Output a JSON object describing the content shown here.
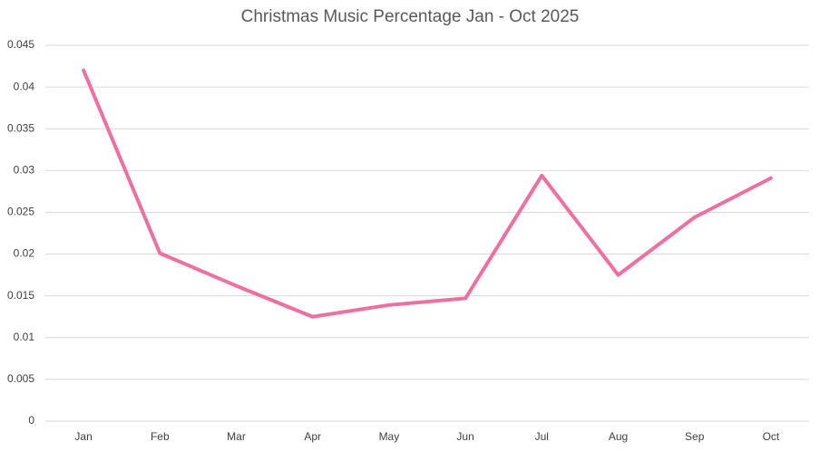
{
  "chart_data": {
    "type": "line",
    "title": "Christmas Music Percentage  Jan - Oct 2025",
    "categories": [
      "Jan",
      "Feb",
      "Mar",
      "Apr",
      "May",
      "Jun",
      "Jul",
      "Aug",
      "Sep",
      "Oct"
    ],
    "values": [
      0.042,
      0.0201,
      0.0162,
      0.0125,
      0.0139,
      0.0147,
      0.0294,
      0.0175,
      0.0244,
      0.0291
    ],
    "color": "#ef6fa1",
    "ylim": [
      0,
      0.045
    ],
    "yticks": [
      0,
      0.005,
      0.01,
      0.015,
      0.02,
      0.025,
      0.03,
      0.035,
      0.04,
      0.045
    ],
    "grid": true
  }
}
